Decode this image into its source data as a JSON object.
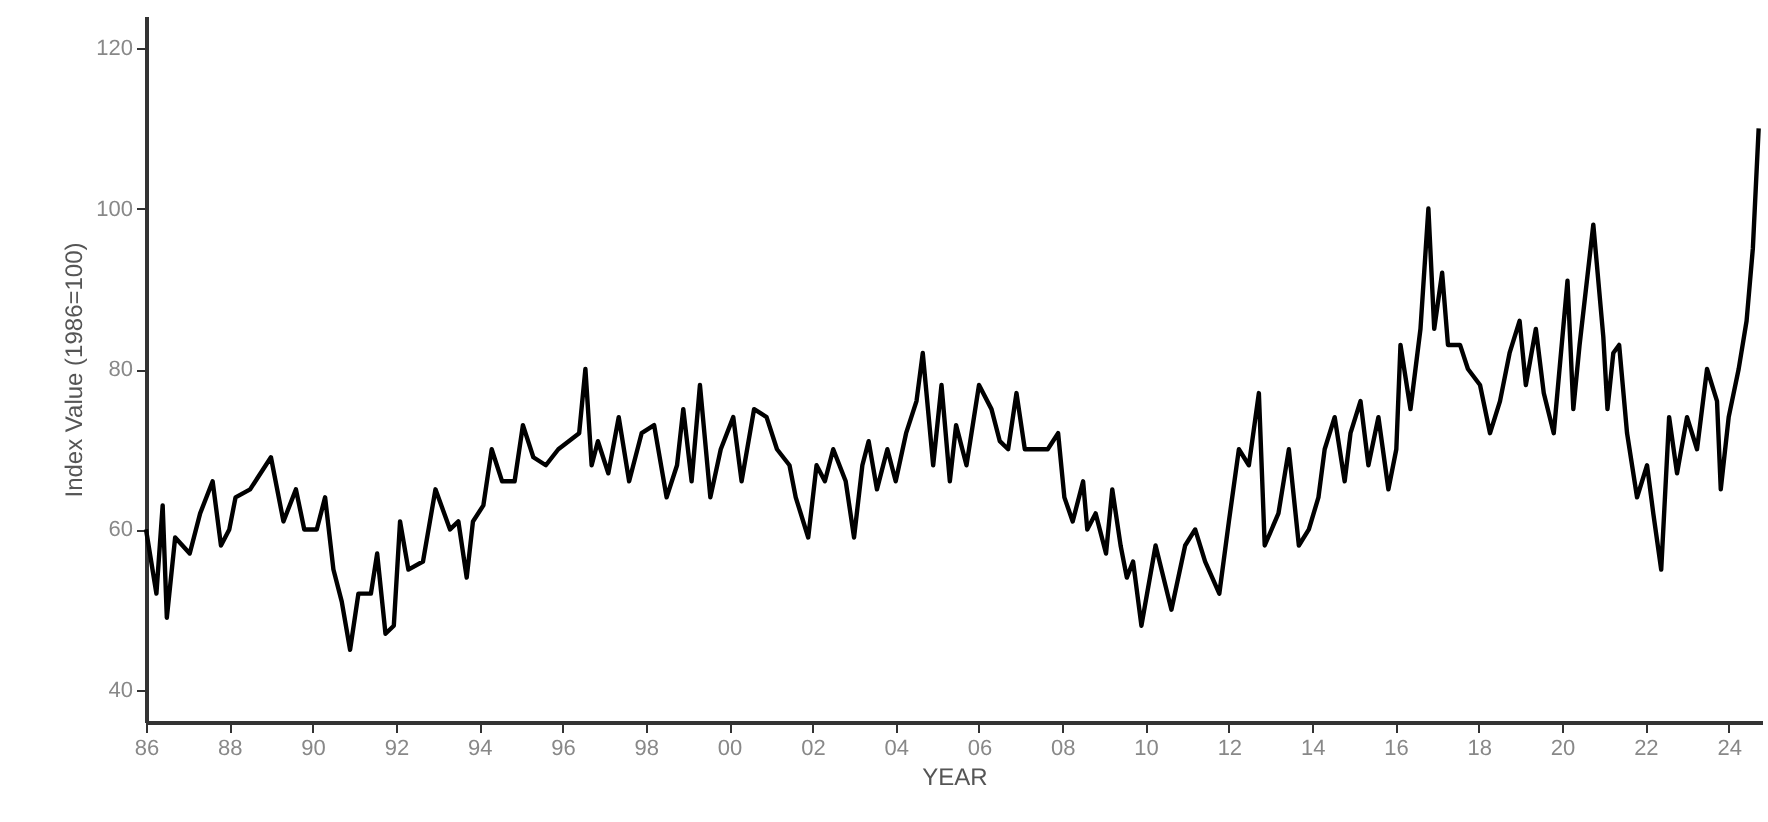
{
  "chart_data": {
    "type": "line",
    "xlabel": "YEAR",
    "ylabel": "Index Value (1986=100)",
    "x": [
      1986,
      1986.25,
      1986.4,
      1986.5,
      1986.7,
      1987.05,
      1987.3,
      1987.6,
      1987.8,
      1988,
      1988.15,
      1988.5,
      1989,
      1989.3,
      1989.6,
      1989.8,
      1990.1,
      1990.3,
      1990.5,
      1990.7,
      1990.9,
      1991.1,
      1991.4,
      1991.55,
      1991.75,
      1991.95,
      1992.1,
      1992.3,
      1992.65,
      1992.95,
      1993.3,
      1993.5,
      1993.7,
      1993.85,
      1994.1,
      1994.3,
      1994.55,
      1994.85,
      1995.05,
      1995.3,
      1995.6,
      1995.9,
      1996.4,
      1996.55,
      1996.7,
      1996.85,
      1997.1,
      1997.35,
      1997.6,
      1997.9,
      1998.2,
      1998.5,
      1998.75,
      1998.9,
      1999.1,
      1999.3,
      1999.55,
      1999.8,
      2000.1,
      2000.3,
      2000.6,
      2000.9,
      2001.15,
      2001.45,
      2001.6,
      2001.9,
      2002.1,
      2002.3,
      2002.5,
      2002.8,
      2003,
      2003.2,
      2003.35,
      2003.55,
      2003.8,
      2004,
      2004.25,
      2004.5,
      2004.65,
      2004.9,
      2005.1,
      2005.3,
      2005.45,
      2005.7,
      2006,
      2006.3,
      2006.5,
      2006.7,
      2006.9,
      2007.1,
      2007.65,
      2007.9,
      2008.05,
      2008.25,
      2008.5,
      2008.6,
      2008.8,
      2009.05,
      2009.2,
      2009.4,
      2009.55,
      2009.7,
      2009.9,
      2010.24,
      2010.62,
      2010.95,
      2011.19,
      2011.43,
      2011.77,
      2012,
      2012.24,
      2012.48,
      2012.72,
      2012.86,
      2013.19,
      2013.44,
      2013.68,
      2013.92,
      2014.15,
      2014.3,
      2014.54,
      2014.78,
      2014.92,
      2015.16,
      2015.35,
      2015.59,
      2015.83,
      2016.02,
      2016.12,
      2016.36,
      2016.6,
      2016.79,
      2016.93,
      2017.12,
      2017.26,
      2017.55,
      2017.74,
      2018.03,
      2018.27,
      2018.51,
      2018.74,
      2018.98,
      2019.13,
      2019.37,
      2019.56,
      2019.8,
      2020.13,
      2020.27,
      2020.42,
      2020.75,
      2020.99,
      2021.09,
      2021.23,
      2021.37,
      2021.56,
      2021.8,
      2022.04,
      2022.19,
      2022.38,
      2022.57,
      2022.76,
      2023,
      2023.24,
      2023.48,
      2023.72,
      2023.81,
      2024,
      2024.24,
      2024.43,
      2024.58,
      2024.72
    ],
    "series": [
      {
        "color": "#000000",
        "values": [
          60,
          52,
          63,
          49,
          59,
          57,
          62,
          66,
          58,
          60,
          64,
          65,
          69,
          61,
          65,
          60,
          60,
          64,
          55,
          51,
          45,
          52,
          52,
          57,
          47,
          48,
          61,
          55,
          56,
          65,
          60,
          61,
          54,
          61,
          63,
          70,
          66,
          66,
          73,
          69,
          68,
          70,
          72,
          80,
          68,
          71,
          67,
          74,
          66,
          72,
          73,
          64,
          68,
          75,
          66,
          78,
          64,
          70,
          74,
          66,
          75,
          74,
          70,
          68,
          64,
          59,
          68,
          66,
          70,
          66,
          59,
          68,
          71,
          65,
          70,
          66,
          72,
          76,
          82,
          68,
          78,
          66,
          73,
          68,
          78,
          75,
          71,
          70,
          77,
          70,
          70,
          72,
          64,
          61,
          66,
          60,
          62,
          57,
          65,
          58,
          54,
          56,
          48,
          58,
          50,
          58,
          60,
          56,
          52,
          61,
          70,
          68,
          77,
          58,
          62,
          70,
          58,
          60,
          64,
          70,
          74,
          66,
          72,
          76,
          68,
          74,
          65,
          70,
          83,
          75,
          85,
          100,
          85,
          92,
          83,
          83,
          80,
          78,
          72,
          76,
          82,
          86,
          78,
          85,
          77,
          72,
          91,
          75,
          83,
          98,
          84,
          75,
          82,
          83,
          72,
          64,
          68,
          62,
          55,
          74,
          67,
          74,
          70,
          80,
          76,
          65,
          74,
          80,
          86,
          95,
          110
        ]
      }
    ],
    "xlim": [
      1986,
      2024.8
    ],
    "xticks": [
      {
        "value": 1986,
        "label": "86"
      },
      {
        "value": 1988,
        "label": "88"
      },
      {
        "value": 1990,
        "label": "90"
      },
      {
        "value": 1992,
        "label": "92"
      },
      {
        "value": 1994,
        "label": "94"
      },
      {
        "value": 1996,
        "label": "96"
      },
      {
        "value": 1998,
        "label": "98"
      },
      {
        "value": 2000,
        "label": "00"
      },
      {
        "value": 2002,
        "label": "02"
      },
      {
        "value": 2004,
        "label": "04"
      },
      {
        "value": 2006,
        "label": "06"
      },
      {
        "value": 2008,
        "label": "08"
      },
      {
        "value": 2010,
        "label": "10"
      },
      {
        "value": 2012,
        "label": "12"
      },
      {
        "value": 2014,
        "label": "14"
      },
      {
        "value": 2016,
        "label": "16"
      },
      {
        "value": 2018,
        "label": "18"
      },
      {
        "value": 2020,
        "label": "20"
      },
      {
        "value": 2022,
        "label": "22"
      },
      {
        "value": 2024,
        "label": "24"
      }
    ],
    "ylim": [
      36,
      124
    ],
    "yticks": [
      40,
      60,
      80,
      100,
      120
    ],
    "grid": false,
    "line_style": "solid"
  }
}
